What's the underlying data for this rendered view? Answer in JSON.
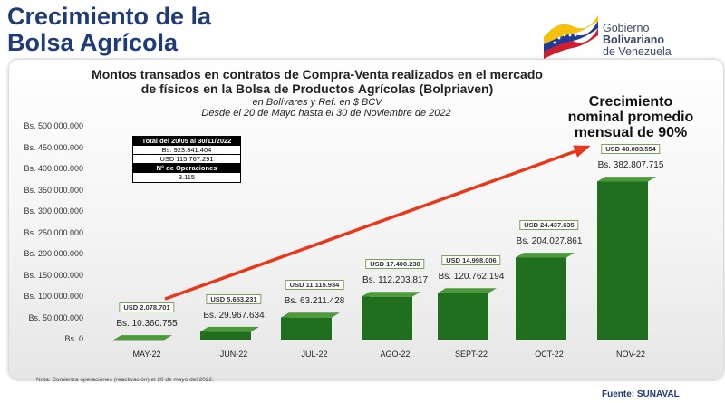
{
  "slide": {
    "title_line1": "Crecimiento de la",
    "title_line2": "Bolsa Agrícola"
  },
  "logo": {
    "line1": "Gobierno",
    "line2": "Bolivariano",
    "line3": "de Venezuela",
    "flag_colors": [
      "#f4c20d",
      "#1f3b9a",
      "#cf1f2e"
    ]
  },
  "summary_box": {
    "header": "Total del 20/05 al 30/11/2022",
    "bs_total": "Bs. 923.341.404",
    "usd_total": "USD 115.767.291",
    "ops_label": "N° de Operaciones",
    "ops_value": "3.115"
  },
  "growth_note": {
    "line1": "Crecimiento",
    "line2": "nominal promedio",
    "line3": "mensual de 90%"
  },
  "footnote": "Nota: Comienza operaciones (reactivación) el 20 de mayo del 2022.",
  "source": "Fuente: SUNAVAL",
  "colors": {
    "title": "#1f3b78",
    "bar": "#1f6f1f",
    "bar_dark": "#0f4a0f",
    "arrow": "#e8381c",
    "usd_border": "#7aa05a"
  },
  "chart_data": {
    "type": "bar",
    "title": "Montos transados en contratos de Compra-Venta realizados en el mercado de físicos en la Bolsa de Productos Agrícolas (Bolpriaven)",
    "subtitle1": "en Bolívares y Ref. en $ BCV",
    "subtitle2": "Desde el 20 de Mayo hasta el 30 de Noviembre de 2022",
    "categories": [
      "MAY-22",
      "JUN-22",
      "JUL-22",
      "AGO-22",
      "SEPT-22",
      "OCT-22",
      "NOV-22"
    ],
    "values": [
      10360755,
      29967634,
      63211428,
      112203817,
      120762194,
      204027861,
      382807715
    ],
    "value_labels": [
      "Bs. 10.360.755",
      "Bs. 29.967.634",
      "Bs. 63.211.428",
      "Bs. 112.203.817",
      "Bs. 120.762.194",
      "Bs. 204.027.861",
      "Bs. 382.807.715"
    ],
    "usd_labels": [
      "USD 2.078.701",
      "USD 5.653.231",
      "USD 11.115.934",
      "USD 17.400.230",
      "USD 14.998.006",
      "USD 24.437.635",
      "USD 40.083.554"
    ],
    "y_ticks": [
      "Bs. 0",
      "Bs. 50.000.000",
      "Bs. 100.000.000",
      "Bs. 150.000.000",
      "Bs. 200.000.000",
      "Bs. 250.000.000",
      "Bs. 300.000.000",
      "Bs. 350.000.000",
      "Bs. 400.000.000",
      "Bs. 450.000.000",
      "Bs. 500.000.000"
    ],
    "ylim": [
      0,
      500000000
    ],
    "grid": false,
    "trend_arrow": true
  }
}
